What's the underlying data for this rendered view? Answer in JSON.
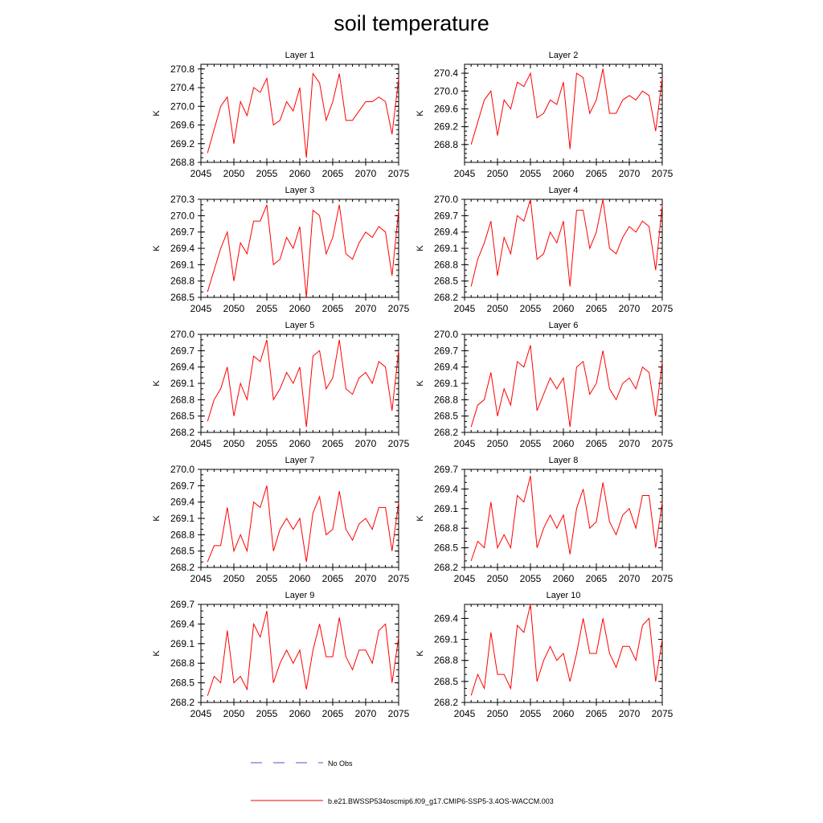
{
  "title": "soil temperature",
  "chart_data": {
    "type": "line",
    "xlabel": "",
    "ylabel": "K",
    "xlim": [
      2045,
      2075
    ],
    "x_ticks": [
      2045,
      2050,
      2055,
      2060,
      2065,
      2070,
      2075
    ],
    "x": [
      2046,
      2047,
      2048,
      2049,
      2050,
      2051,
      2052,
      2053,
      2054,
      2055,
      2056,
      2057,
      2058,
      2059,
      2060,
      2061,
      2062,
      2063,
      2064,
      2065,
      2066,
      2067,
      2068,
      2069,
      2070,
      2071,
      2072,
      2073,
      2074,
      2075
    ],
    "series_color": "#ff0000",
    "panels": [
      {
        "title": "Layer 1",
        "ylim": [
          268.8,
          270.9
        ],
        "y_ticks": [
          "268.8",
          "269.2",
          "269.6",
          "270.0",
          "270.4",
          "270.8"
        ],
        "values": [
          269.0,
          269.5,
          270.0,
          270.2,
          269.2,
          270.1,
          269.8,
          270.4,
          270.3,
          270.6,
          269.6,
          269.7,
          270.1,
          269.9,
          270.4,
          268.9,
          270.7,
          270.5,
          269.7,
          270.1,
          270.7,
          269.7,
          269.7,
          269.9,
          270.1,
          270.1,
          270.2,
          270.1,
          269.4,
          270.6
        ]
      },
      {
        "title": "Layer 2",
        "ylim": [
          268.4,
          270.6
        ],
        "y_ticks": [
          "268.8",
          "269.2",
          "269.6",
          "270.0",
          "270.4"
        ],
        "values": [
          268.8,
          269.3,
          269.8,
          270.0,
          269.0,
          269.8,
          269.6,
          270.2,
          270.1,
          270.4,
          269.4,
          269.5,
          269.8,
          269.7,
          270.2,
          268.7,
          270.4,
          270.3,
          269.5,
          269.8,
          270.5,
          269.5,
          269.5,
          269.8,
          269.9,
          269.8,
          270.0,
          269.9,
          269.1,
          270.3
        ]
      },
      {
        "title": "Layer 3",
        "ylim": [
          268.5,
          270.3
        ],
        "y_ticks": [
          "268.5",
          "268.8",
          "269.1",
          "269.4",
          "269.7",
          "270.0",
          "270.3"
        ],
        "values": [
          268.6,
          269.0,
          269.4,
          269.7,
          268.8,
          269.5,
          269.3,
          269.9,
          269.9,
          270.2,
          269.1,
          269.2,
          269.6,
          269.4,
          269.8,
          268.5,
          270.1,
          270.0,
          269.3,
          269.6,
          270.2,
          269.3,
          269.2,
          269.5,
          269.7,
          269.6,
          269.8,
          269.7,
          268.9,
          270.1
        ]
      },
      {
        "title": "Layer 4",
        "ylim": [
          268.2,
          270.0
        ],
        "y_ticks": [
          "268.2",
          "268.5",
          "268.8",
          "269.1",
          "269.4",
          "269.7",
          "270.0"
        ],
        "values": [
          268.4,
          268.9,
          269.2,
          269.6,
          268.6,
          269.3,
          269.0,
          269.7,
          269.6,
          270.0,
          268.9,
          269.0,
          269.4,
          269.2,
          269.6,
          268.4,
          269.8,
          269.8,
          269.1,
          269.4,
          270.0,
          269.1,
          269.0,
          269.3,
          269.5,
          269.4,
          269.6,
          269.5,
          268.7,
          269.9
        ]
      },
      {
        "title": "Layer 5",
        "ylim": [
          268.2,
          270.0
        ],
        "y_ticks": [
          "268.2",
          "268.5",
          "268.8",
          "269.1",
          "269.4",
          "269.7",
          "270.0"
        ],
        "values": [
          268.4,
          268.8,
          269.0,
          269.4,
          268.5,
          269.1,
          268.8,
          269.6,
          269.5,
          269.9,
          268.8,
          269.0,
          269.3,
          269.1,
          269.4,
          268.3,
          269.6,
          269.7,
          269.0,
          269.2,
          269.9,
          269.0,
          268.9,
          269.2,
          269.3,
          269.1,
          269.5,
          269.4,
          268.6,
          269.7
        ]
      },
      {
        "title": "Layer 6",
        "ylim": [
          268.2,
          270.0
        ],
        "y_ticks": [
          "268.2",
          "268.5",
          "268.8",
          "269.1",
          "269.4",
          "269.7",
          "270.0"
        ],
        "values": [
          268.3,
          268.7,
          268.8,
          269.3,
          268.5,
          269.0,
          268.7,
          269.5,
          269.4,
          269.8,
          268.6,
          268.9,
          269.2,
          269.0,
          269.2,
          268.3,
          269.4,
          269.5,
          268.9,
          269.1,
          269.7,
          269.0,
          268.8,
          269.1,
          269.2,
          269.0,
          269.4,
          269.3,
          268.5,
          269.5
        ]
      },
      {
        "title": "Layer 7",
        "ylim": [
          268.2,
          270.0
        ],
        "y_ticks": [
          "268.2",
          "268.5",
          "268.8",
          "269.1",
          "269.4",
          "269.7",
          "270.0"
        ],
        "values": [
          268.3,
          268.6,
          268.6,
          269.3,
          268.5,
          268.8,
          268.5,
          269.4,
          269.3,
          269.7,
          268.5,
          268.9,
          269.1,
          268.9,
          269.1,
          268.3,
          269.2,
          269.5,
          268.8,
          268.9,
          269.6,
          268.9,
          268.7,
          269.0,
          269.1,
          268.9,
          269.3,
          269.3,
          268.5,
          269.4
        ]
      },
      {
        "title": "Layer 8",
        "ylim": [
          268.2,
          269.7
        ],
        "y_ticks": [
          "268.2",
          "268.5",
          "268.8",
          "269.1",
          "269.4",
          "269.7"
        ],
        "values": [
          268.3,
          268.6,
          268.5,
          269.2,
          268.5,
          268.7,
          268.5,
          269.3,
          269.2,
          269.6,
          268.5,
          268.8,
          269.0,
          268.8,
          269.0,
          268.4,
          269.1,
          269.4,
          268.8,
          268.9,
          269.5,
          268.9,
          268.7,
          269.0,
          269.1,
          268.8,
          269.3,
          269.3,
          268.5,
          269.2
        ]
      },
      {
        "title": "Layer 9",
        "ylim": [
          268.2,
          269.7
        ],
        "y_ticks": [
          "268.2",
          "268.5",
          "268.8",
          "269.1",
          "269.4",
          "269.7"
        ],
        "values": [
          268.3,
          268.6,
          268.5,
          269.3,
          268.5,
          268.6,
          268.4,
          269.4,
          269.2,
          269.6,
          268.5,
          268.8,
          269.0,
          268.8,
          269.0,
          268.4,
          269.0,
          269.4,
          268.9,
          268.9,
          269.5,
          268.9,
          268.7,
          269.0,
          269.0,
          268.8,
          269.3,
          269.4,
          268.5,
          269.2
        ]
      },
      {
        "title": "Layer 10",
        "ylim": [
          268.2,
          269.6
        ],
        "y_ticks": [
          "268.2",
          "268.5",
          "268.8",
          "269.1",
          "269.4"
        ],
        "values": [
          268.3,
          268.6,
          268.4,
          269.2,
          268.6,
          268.6,
          268.4,
          269.3,
          269.2,
          269.6,
          268.5,
          268.8,
          269.0,
          268.8,
          268.9,
          268.5,
          268.9,
          269.4,
          268.9,
          268.9,
          269.4,
          268.9,
          268.7,
          269.0,
          269.0,
          268.8,
          269.3,
          269.4,
          268.5,
          269.1
        ]
      }
    ],
    "legend": [
      {
        "label": "No Obs",
        "style": "dashed",
        "color": "#4a55c8"
      },
      {
        "label": "b.e21.BWSSP534oscmip6.f09_g17.CMIP6-SSP5-3.4OS-WACCM.003",
        "style": "solid",
        "color": "#ff0000"
      }
    ]
  }
}
